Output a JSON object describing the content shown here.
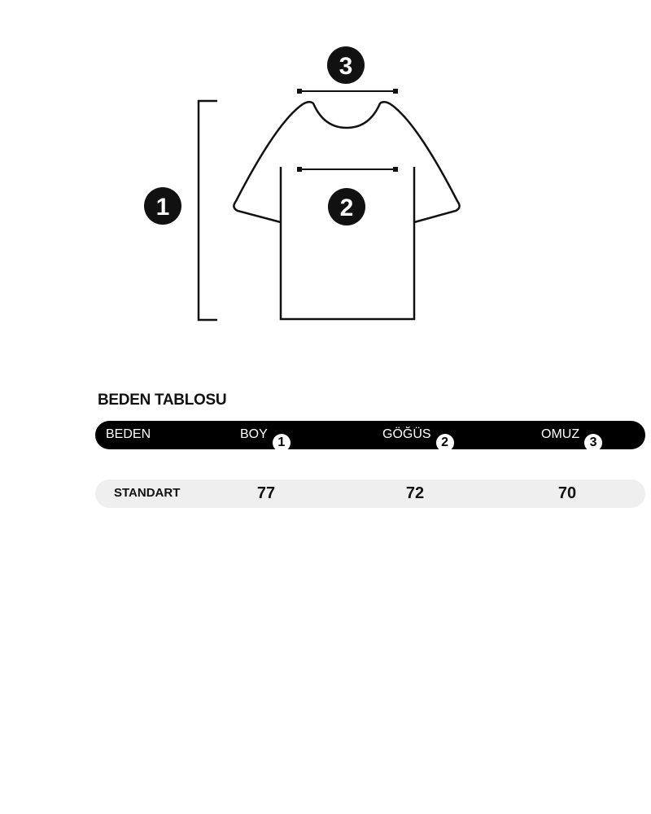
{
  "diagram": {
    "markers": [
      "1",
      "2",
      "3"
    ]
  },
  "table": {
    "title": "BEDEN TABLOSU",
    "headers": [
      {
        "label": "BEDEN"
      },
      {
        "label": "BOY",
        "badge": "1"
      },
      {
        "label": "GÖĞÜS",
        "badge": "2"
      },
      {
        "label": "OMUZ",
        "badge": "3"
      }
    ],
    "rows": [
      {
        "size": "STANDART",
        "values": [
          "77",
          "72",
          "70"
        ]
      }
    ]
  }
}
